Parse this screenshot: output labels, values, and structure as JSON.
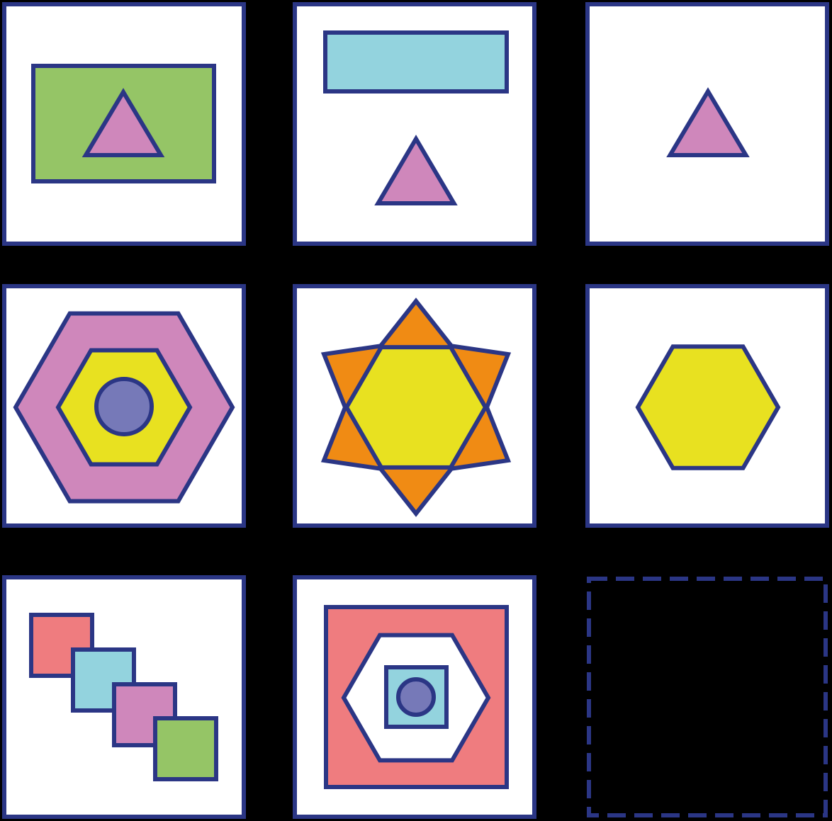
{
  "colors": {
    "background": "#000000",
    "panel_fill": "#ffffff",
    "outline": "#2b3685",
    "green": "#95c566",
    "light_blue": "#93d3de",
    "pink": "#cf87bb",
    "yellow": "#e8e120",
    "orange": "#f08b14",
    "purple_blue": "#7679b8",
    "salmon": "#ef7c7f"
  },
  "grid": {
    "rows": 3,
    "columns": 3
  },
  "panels": [
    {
      "id": "r1c1",
      "description_shapes": [
        "green-rectangle",
        "pink-triangle"
      ]
    },
    {
      "id": "r1c2",
      "description_shapes": [
        "light-blue-rectangle",
        "pink-triangle"
      ]
    },
    {
      "id": "r1c3",
      "description_shapes": [
        "pink-triangle"
      ]
    },
    {
      "id": "r2c1",
      "description_shapes": [
        "pink-hexagon",
        "yellow-hexagon",
        "purple-circle"
      ]
    },
    {
      "id": "r2c2",
      "description_shapes": [
        "orange-star",
        "yellow-hexagon"
      ]
    },
    {
      "id": "r2c3",
      "description_shapes": [
        "yellow-hexagon"
      ]
    },
    {
      "id": "r3c1",
      "description_shapes": [
        "salmon-square",
        "light-blue-square",
        "pink-square",
        "green-square"
      ]
    },
    {
      "id": "r3c2",
      "description_shapes": [
        "salmon-square",
        "white-hexagon",
        "light-blue-square",
        "purple-circle"
      ]
    },
    {
      "id": "r3c3",
      "description_shapes": []
    }
  ],
  "answer_slot": {
    "style": "dashed",
    "empty": true
  }
}
